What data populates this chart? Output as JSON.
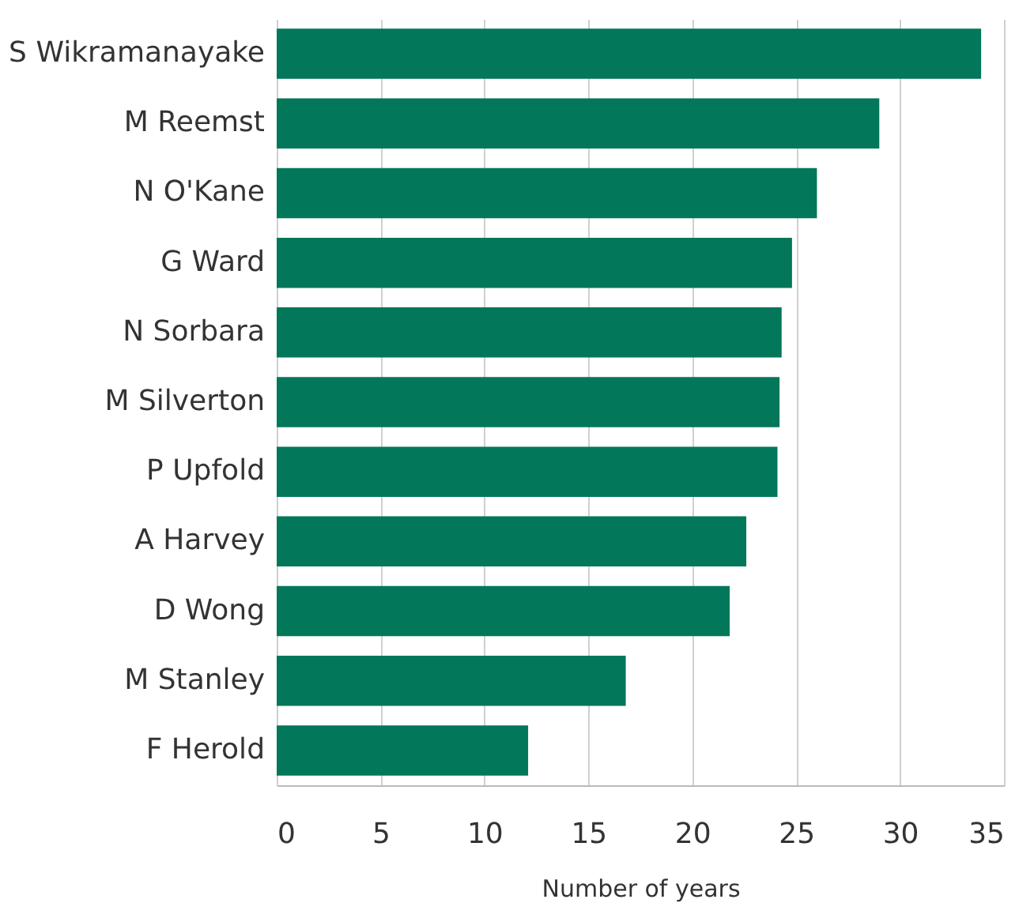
{
  "chart_data": {
    "type": "bar",
    "orientation": "horizontal",
    "categories": [
      "S Wikramanayake",
      "M Reemst",
      "N O'Kane",
      "G Ward",
      "N Sorbara",
      "M Silverton",
      "P Upfold",
      "A Harvey",
      "D Wong",
      "M Stanley",
      "F Herold"
    ],
    "values": [
      33.9,
      29.0,
      26.0,
      24.8,
      24.3,
      24.2,
      24.1,
      22.6,
      21.8,
      16.8,
      12.1
    ],
    "color": "#03775a",
    "xlabel": "Number of years",
    "xlim": [
      0,
      35
    ],
    "xticks": [
      0,
      5,
      10,
      15,
      20,
      25,
      30,
      35
    ],
    "grid": "x"
  }
}
